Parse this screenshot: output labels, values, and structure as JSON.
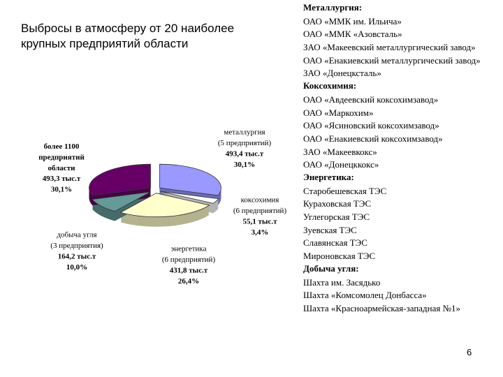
{
  "title": "Выбросы в атмосферу от 20 наиболее крупных предприятий области",
  "chart_data": {
    "type": "pie",
    "categories": [
      "металлургия",
      "коксохимия",
      "энергетика",
      "добыча угля",
      "более 1100 предприятий области"
    ],
    "subtitles": [
      "(5 предприятий)",
      "(6 предприятий)",
      "(6 предприятий)",
      "(3 предприятия)",
      null
    ],
    "values": [
      493.4,
      55.1,
      431.8,
      164.2,
      493.3
    ],
    "value_labels": [
      "493,4 тыс.т",
      "55,1 тыс.т",
      "431,8 тыс.т",
      "164,2 тыс.т",
      "493,3 тыс.т"
    ],
    "percents": [
      30.1,
      3.4,
      26.4,
      10.0,
      30.1
    ],
    "percent_labels": [
      "30,1%",
      "3,4%",
      "26,4%",
      "10,0%",
      "30,1%"
    ],
    "colors": [
      "#9999ff",
      "#ffffff",
      "#ffffcc",
      "#669999",
      "#660066"
    ]
  },
  "list": [
    {
      "heading": "Металлургия:",
      "items": [
        "ОАО «ММК им. Ильича»",
        "ОАО «ММК «Азовсталь»",
        "ЗАО «Макеевский металлургический завод»",
        "ОАО «Енакиевский металлургический завод»",
        "ЗАО «Донецксталь»"
      ]
    },
    {
      "heading": "Коксохимия:",
      "items": [
        "ОАО «Авдеевский коксохимзавод»",
        "ОАО «Маркохим»",
        "ОАО «Ясиновский коксохимзавод»",
        "ОАО «Енакиевский коксохимзавод»",
        "ЗАО «Макеевкокс»",
        "ОАО «Донецккокс»"
      ]
    },
    {
      "heading": "Энергетика:",
      "items": [
        "Старобешевская ТЭС",
        "Кураховская ТЭС",
        "Углегорская ТЭС",
        "Зуевская ТЭС",
        "Славянская ТЭС",
        "Мироновская ТЭС"
      ]
    },
    {
      "heading": "Добыча угля:",
      "items": [
        "Шахта им. Засядько",
        "Шахта «Комсомолец Донбасса»",
        "Шахта «Красноармейская-западная №1»"
      ]
    }
  ],
  "page_number": "6"
}
